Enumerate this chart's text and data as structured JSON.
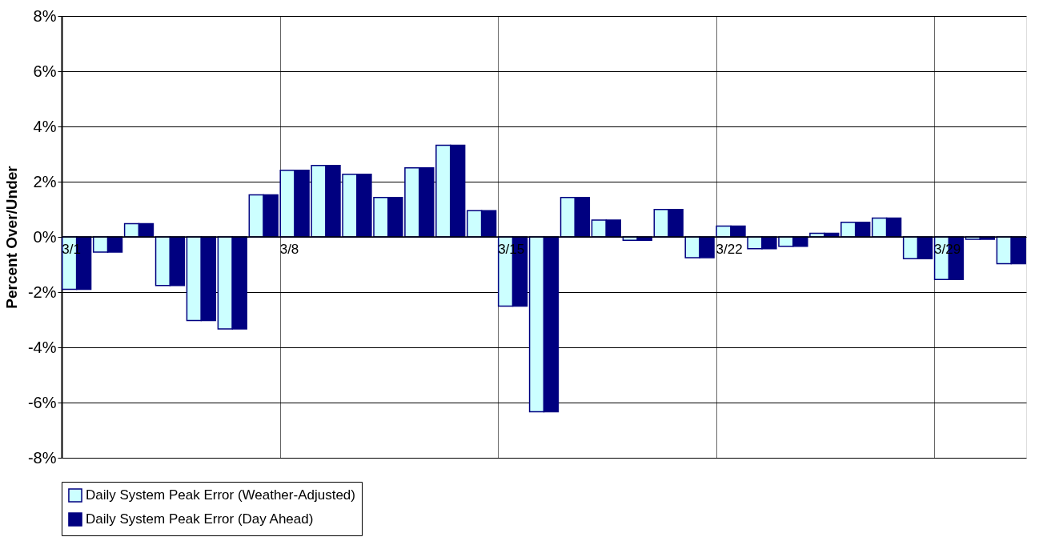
{
  "chart_data": {
    "type": "bar",
    "ylabel": "Percent Over/Under",
    "categories": [
      "3/1",
      null,
      null,
      null,
      null,
      null,
      null,
      "3/8",
      null,
      null,
      null,
      null,
      null,
      null,
      "3/15",
      null,
      null,
      null,
      null,
      null,
      null,
      "3/22",
      null,
      null,
      null,
      null,
      null,
      null,
      "3/29",
      null,
      null
    ],
    "series": [
      {
        "name": "Daily System Peak Error (Weather-Adjusted)",
        "color": "#ccffff",
        "values": [
          -1.9,
          -0.55,
          0.48,
          -1.76,
          -3.03,
          -3.33,
          1.52,
          2.41,
          2.59,
          2.27,
          1.43,
          2.5,
          3.32,
          0.95,
          -2.51,
          -6.33,
          1.43,
          0.61,
          -0.12,
          0.99,
          -0.75,
          0.39,
          -0.43,
          -0.34,
          0.13,
          0.53,
          0.68,
          -0.79,
          -1.54,
          -0.09,
          -0.97
        ]
      },
      {
        "name": "Daily System Peak Error (Day Ahead)",
        "color": "#000080",
        "values": [
          -1.9,
          -0.55,
          0.48,
          -1.76,
          -3.03,
          -3.33,
          1.52,
          2.41,
          2.59,
          2.27,
          1.43,
          2.5,
          3.32,
          0.95,
          -2.51,
          -6.33,
          1.43,
          0.61,
          -0.12,
          0.99,
          -0.75,
          0.39,
          -0.43,
          -0.34,
          0.13,
          0.53,
          0.68,
          -0.79,
          -1.54,
          -0.09,
          -0.97
        ]
      }
    ],
    "ylim": [
      -8,
      8
    ],
    "yticks": [
      {
        "value": -8,
        "label": "-8%"
      },
      {
        "value": -6,
        "label": "-6%"
      },
      {
        "value": -4,
        "label": "-4%"
      },
      {
        "value": -2,
        "label": "-2%"
      },
      {
        "value": 0,
        "label": "0%"
      },
      {
        "value": 2,
        "label": "2%"
      },
      {
        "value": 4,
        "label": "4%"
      },
      {
        "value": 6,
        "label": "6%"
      },
      {
        "value": 8,
        "label": "8%"
      }
    ],
    "grid": true,
    "legend": "bottom"
  }
}
